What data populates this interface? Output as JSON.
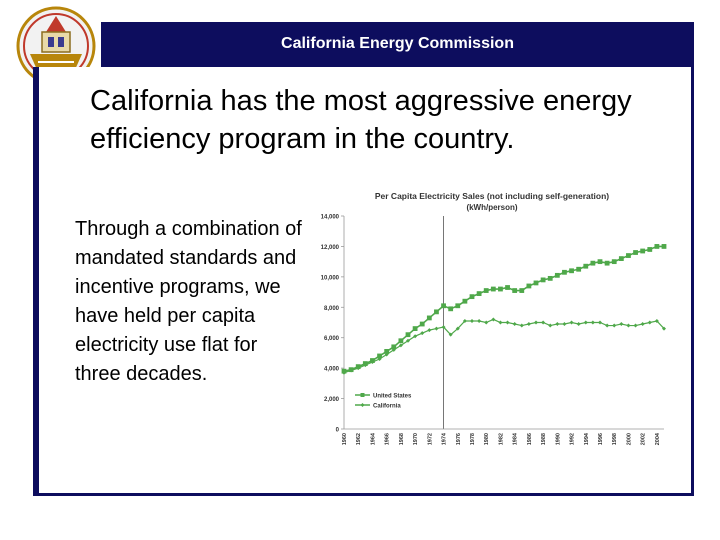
{
  "header": {
    "title": "California Energy Commission",
    "bar_color": "#0d0d5e"
  },
  "seal": {
    "icon": "california-seal-icon"
  },
  "slide": {
    "title": "California has the most aggressive energy efficiency program in the country.",
    "body": "Through a combination of mandated standards and incentive programs, we have held per capita electricity use flat for three decades."
  },
  "chart_data": {
    "type": "line",
    "title": "Per Capita Electricity Sales (not including self-generation)",
    "subtitle": "(kWh/person)",
    "xlabel": "",
    "ylabel": "",
    "ylim": [
      0,
      14000
    ],
    "yticks": [
      "0",
      "2,000",
      "4,000",
      "6,000",
      "8,000",
      "10,000",
      "12,000",
      "14,000"
    ],
    "xticks": [
      "1960",
      "1962",
      "1964",
      "1966",
      "1968",
      "1970",
      "1972",
      "1974",
      "1976",
      "1978",
      "1980",
      "1982",
      "1984",
      "1986",
      "1988",
      "1990",
      "1992",
      "1994",
      "1996",
      "1998",
      "2000",
      "2002",
      "2004"
    ],
    "reference_line_year": 1974,
    "legend_position": "bottom-left",
    "x": [
      1960,
      1961,
      1962,
      1963,
      1964,
      1965,
      1966,
      1967,
      1968,
      1969,
      1970,
      1971,
      1972,
      1973,
      1974,
      1975,
      1976,
      1977,
      1978,
      1979,
      1980,
      1981,
      1982,
      1983,
      1984,
      1985,
      1986,
      1987,
      1988,
      1989,
      1990,
      1991,
      1992,
      1993,
      1994,
      1995,
      1996,
      1997,
      1998,
      1999,
      2000,
      2001,
      2002,
      2003,
      2004,
      2005
    ],
    "series": [
      {
        "name": "United States",
        "color": "#4fa84a",
        "marker": "square",
        "values": [
          3800,
          3900,
          4100,
          4300,
          4500,
          4800,
          5100,
          5400,
          5800,
          6200,
          6600,
          6900,
          7300,
          7700,
          8100,
          7900,
          8100,
          8400,
          8700,
          8900,
          9100,
          9200,
          9200,
          9300,
          9100,
          9100,
          9400,
          9600,
          9800,
          9900,
          10100,
          10300,
          10400,
          10500,
          10700,
          10900,
          11000,
          10900,
          11000,
          11200,
          11400,
          11600,
          11700,
          11800,
          12000,
          12000
        ]
      },
      {
        "name": "California",
        "color": "#4fa84a",
        "marker": "diamond",
        "values": [
          3700,
          3850,
          4000,
          4200,
          4400,
          4600,
          4900,
          5200,
          5500,
          5800,
          6100,
          6300,
          6500,
          6600,
          6700,
          6200,
          6600,
          7100,
          7100,
          7100,
          7000,
          7200,
          7000,
          7000,
          6900,
          6800,
          6900,
          7000,
          7000,
          6800,
          6900,
          6900,
          7000,
          6900,
          7000,
          7000,
          7000,
          6800,
          6800,
          6900,
          6800,
          6800,
          6900,
          7000,
          7100,
          6600
        ]
      }
    ]
  }
}
